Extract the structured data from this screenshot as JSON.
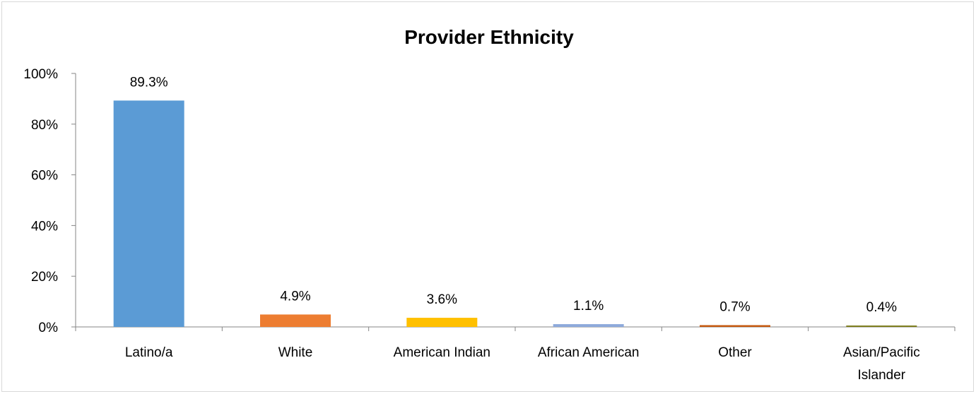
{
  "chart_data": {
    "type": "bar",
    "title": "Provider Ethnicity",
    "xlabel": "",
    "ylabel": "",
    "ylim": [
      0,
      100
    ],
    "yticks": [
      0,
      20,
      40,
      60,
      80,
      100
    ],
    "ytick_labels": [
      "0%",
      "20%",
      "40%",
      "60%",
      "80%",
      "100%"
    ],
    "categories": [
      "Latino/a",
      "White",
      "American Indian",
      "African American",
      "Other",
      "Asian/Pacific Islander"
    ],
    "category_lines": [
      [
        "Latino/a"
      ],
      [
        "White"
      ],
      [
        "American Indian"
      ],
      [
        "African American"
      ],
      [
        "Other"
      ],
      [
        "Asian/Pacific",
        "Islander"
      ]
    ],
    "values": [
      89.3,
      4.9,
      3.6,
      1.1,
      0.7,
      0.4
    ],
    "data_labels": [
      "89.3%",
      "4.9%",
      "3.6%",
      "1.1%",
      "0.7%",
      "0.4%"
    ],
    "colors": [
      "#5b9bd5",
      "#ed7d31",
      "#ffc000",
      "#8eaadb",
      "#c55a11",
      "#7f7f1f"
    ],
    "grid": false,
    "legend": "none"
  }
}
